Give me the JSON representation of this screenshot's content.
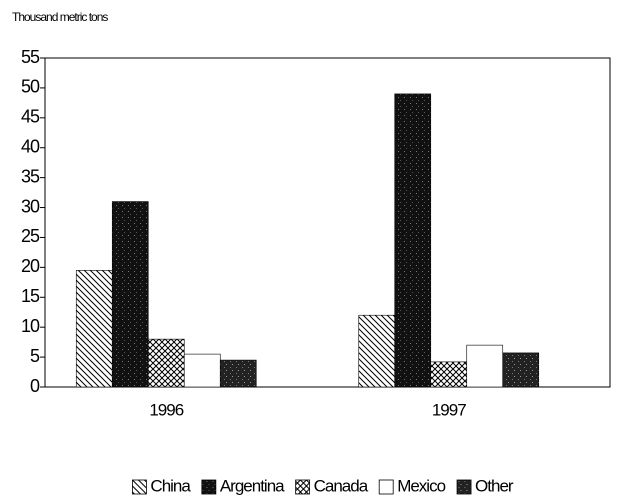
{
  "chart_data": {
    "type": "bar",
    "y_axis_label": "Thousand metric tons",
    "categories": [
      "1996",
      "1997"
    ],
    "series": [
      {
        "name": "China",
        "color": "#000000",
        "values": [
          19.5,
          12
        ]
      },
      {
        "name": "Argentina",
        "color": "#111111",
        "values": [
          31,
          49
        ]
      },
      {
        "name": "Canada",
        "color": "#000000",
        "values": [
          8,
          4.2
        ]
      },
      {
        "name": "Mexico",
        "color": "#ffffff",
        "values": [
          5.5,
          7
        ]
      },
      {
        "name": "Other",
        "color": "#222222",
        "values": [
          4.5,
          5.7
        ]
      }
    ],
    "ylim": [
      0,
      55
    ],
    "yticks": [
      0,
      5,
      10,
      15,
      20,
      25,
      30,
      35,
      40,
      45,
      50,
      55
    ],
    "legend": "bottom"
  }
}
